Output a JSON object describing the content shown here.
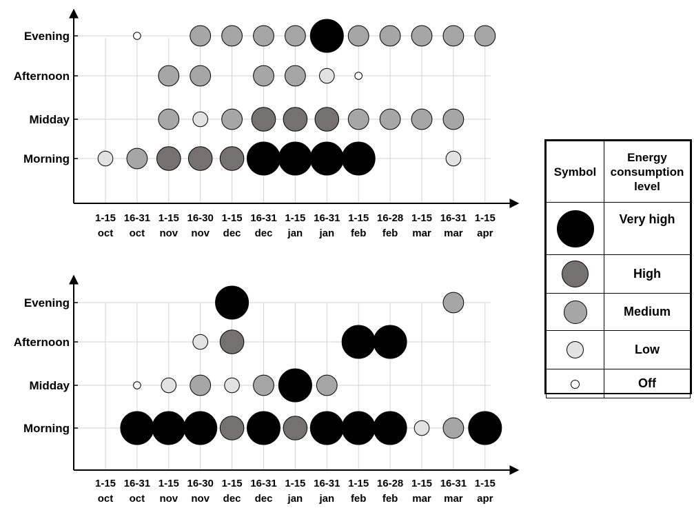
{
  "chart_data": [
    {
      "type": "bubble-matrix",
      "rows": [
        "Morning",
        "Midday",
        "Afternoon",
        "Evening"
      ],
      "columns": [
        {
          "top": "1-15",
          "bottom": "oct"
        },
        {
          "top": "16-31",
          "bottom": "oct"
        },
        {
          "top": "1-15",
          "bottom": "nov"
        },
        {
          "top": "16-30",
          "bottom": "nov"
        },
        {
          "top": "1-15",
          "bottom": "dec"
        },
        {
          "top": "16-31",
          "bottom": "dec"
        },
        {
          "top": "1-15",
          "bottom": "jan"
        },
        {
          "top": "16-31",
          "bottom": "jan"
        },
        {
          "top": "1-15",
          "bottom": "feb"
        },
        {
          "top": "16-28",
          "bottom": "feb"
        },
        {
          "top": "1-15",
          "bottom": "mar"
        },
        {
          "top": "16-31",
          "bottom": "mar"
        },
        {
          "top": "1-15",
          "bottom": "apr"
        }
      ],
      "cells": {
        "Evening": [
          null,
          "off",
          null,
          "medium",
          "medium",
          "medium",
          "medium",
          "very_high",
          "medium",
          "medium",
          "medium",
          "medium",
          "medium"
        ],
        "Afternoon": [
          null,
          null,
          "medium",
          "medium",
          null,
          "medium",
          "medium",
          "low",
          "off",
          null,
          null,
          null,
          null
        ],
        "Midday": [
          null,
          null,
          "medium",
          "low",
          "medium",
          "high",
          "high",
          "high",
          "medium",
          "medium",
          "medium",
          "medium",
          null
        ],
        "Morning": [
          "low",
          "medium",
          "high",
          "high",
          "high",
          "very_high",
          "very_high",
          "very_high",
          "very_high",
          null,
          null,
          "low",
          null
        ]
      }
    },
    {
      "type": "bubble-matrix",
      "rows": [
        "Morning",
        "Midday",
        "Afternoon",
        "Evening"
      ],
      "columns": [
        {
          "top": "1-15",
          "bottom": "oct"
        },
        {
          "top": "16-31",
          "bottom": "oct"
        },
        {
          "top": "1-15",
          "bottom": "nov"
        },
        {
          "top": "16-30",
          "bottom": "nov"
        },
        {
          "top": "1-15",
          "bottom": "dec"
        },
        {
          "top": "16-31",
          "bottom": "dec"
        },
        {
          "top": "1-15",
          "bottom": "jan"
        },
        {
          "top": "16-31",
          "bottom": "jan"
        },
        {
          "top": "1-15",
          "bottom": "feb"
        },
        {
          "top": "16-28",
          "bottom": "feb"
        },
        {
          "top": "1-15",
          "bottom": "mar"
        },
        {
          "top": "16-31",
          "bottom": "mar"
        },
        {
          "top": "1-15",
          "bottom": "apr"
        }
      ],
      "cells": {
        "Evening": [
          null,
          null,
          null,
          null,
          "very_high",
          null,
          null,
          null,
          null,
          null,
          null,
          "medium",
          null
        ],
        "Afternoon": [
          null,
          null,
          null,
          "low",
          "high",
          null,
          null,
          null,
          "very_high",
          "very_high",
          null,
          null,
          null
        ],
        "Midday": [
          null,
          "off",
          "low",
          "medium",
          "low",
          "medium",
          "very_high",
          "medium",
          null,
          null,
          null,
          null,
          null
        ],
        "Morning": [
          null,
          "very_high",
          "very_high",
          "very_high",
          "high",
          "very_high",
          "high",
          "very_high",
          "very_high",
          "very_high",
          "low",
          "medium",
          "very_high"
        ]
      }
    }
  ],
  "levels": {
    "very_high": {
      "label": "Very high",
      "color": "#000000",
      "scale": 1.0
    },
    "high": {
      "label": "High",
      "color": "#767171",
      "scale": 0.72
    },
    "medium": {
      "label": "Medium",
      "color": "#a6a6a6",
      "scale": 0.62
    },
    "low": {
      "label": "Low",
      "color": "#e2e2e2",
      "scale": 0.45
    },
    "off": {
      "label": "Off",
      "color": "#ffffff",
      "scale": 0.22
    }
  },
  "legend": {
    "symbol_header": "Symbol",
    "level_header": [
      "Energy",
      "consumption",
      "level"
    ],
    "order": [
      "very_high",
      "high",
      "medium",
      "low",
      "off"
    ]
  }
}
